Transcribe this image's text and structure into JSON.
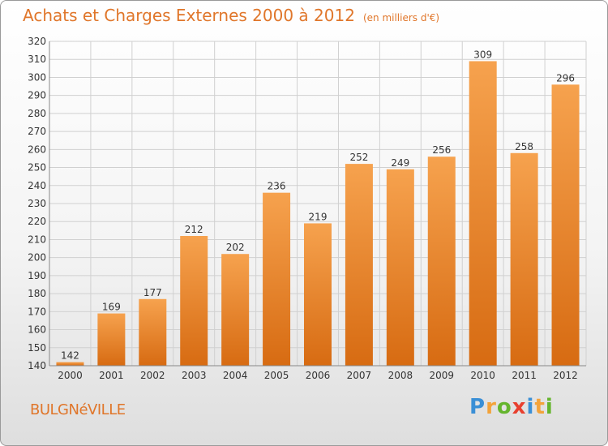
{
  "chart_data": {
    "type": "bar",
    "title": "Achats et Charges Externes 2000 à 2012",
    "subtitle": "(en milliers d'€)",
    "categories": [
      "2000",
      "2001",
      "2002",
      "2003",
      "2004",
      "2005",
      "2006",
      "2007",
      "2008",
      "2009",
      "2010",
      "2011",
      "2012"
    ],
    "values": [
      142,
      169,
      177,
      212,
      202,
      236,
      219,
      252,
      249,
      256,
      309,
      258,
      296
    ],
    "ylim": [
      140,
      320
    ],
    "yticks": [
      140,
      150,
      160,
      170,
      180,
      190,
      200,
      210,
      220,
      230,
      240,
      250,
      260,
      270,
      280,
      290,
      300,
      310,
      320
    ],
    "xlabel": "",
    "ylabel": "",
    "grid": true,
    "bar_color": "#f0923a"
  },
  "place": "BULGNéVILLE",
  "brand": {
    "letters": [
      "P",
      "r",
      "o",
      "x",
      "i",
      "t",
      "i"
    ],
    "colors": [
      "#3a8fd6",
      "#f3a33a",
      "#65b52e",
      "#e8402f",
      "#3a8fd6",
      "#f3a33a",
      "#65b52e"
    ]
  }
}
